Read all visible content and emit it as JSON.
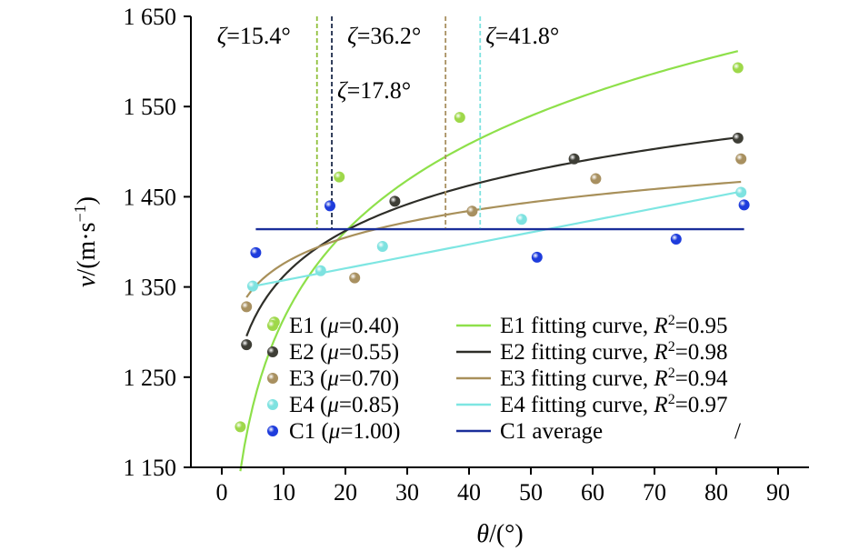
{
  "chart_data": {
    "type": "scatter",
    "xlabel_var": "θ",
    "xlabel_unit": "/(°)",
    "ylabel_var": "v",
    "ylabel_unit": "/(m·s",
    "ylabel_exp": "−1",
    "ylabel_close": ")",
    "xlim": [
      -5,
      95
    ],
    "ylim": [
      1150,
      1650
    ],
    "xticks": [
      0,
      10,
      20,
      30,
      40,
      50,
      60,
      70,
      80,
      90
    ],
    "xtick_labels": [
      "0",
      "10",
      "20",
      "30",
      "40",
      "50",
      "60",
      "70",
      "80",
      "90"
    ],
    "yticks": [
      1150,
      1250,
      1350,
      1450,
      1550,
      1650
    ],
    "ytick_labels": [
      "1 150",
      "1 250",
      "1 350",
      "1 450",
      "1 550",
      "1 650"
    ],
    "series": [
      {
        "name": "E1 (μ=0.40)",
        "legend_prefix": "E1 (",
        "legend_var": "μ",
        "legend_suffix": "=0.40)",
        "color": "#9ED84A",
        "line_color": "#8EE04A",
        "points": [
          [
            3,
            1195
          ],
          [
            8.5,
            1311
          ],
          [
            19,
            1472
          ],
          [
            38.5,
            1538
          ],
          [
            83.5,
            1593
          ]
        ],
        "fit": {
          "type": "log",
          "a": 992.0,
          "b": 140.0
        },
        "fit_label": "E1 fitting curve, ",
        "r2_value": "=0.95"
      },
      {
        "name": "E2 (μ=0.55)",
        "legend_prefix": "E2 (",
        "legend_var": "μ",
        "legend_suffix": "=0.55)",
        "color": "#3E3E36",
        "line_color": "#2E2E28",
        "points": [
          [
            4,
            1286
          ],
          [
            28,
            1445
          ],
          [
            57,
            1492
          ],
          [
            83.5,
            1515
          ]
        ],
        "fit": {
          "type": "log",
          "a": 1195.0,
          "b": 72.5
        },
        "fit_label": "E2 fitting curve, ",
        "r2_value": "=0.98"
      },
      {
        "name": "E3 (μ=0.70)",
        "legend_prefix": "E3 (",
        "legend_var": "μ",
        "legend_suffix": "=0.70)",
        "color": "#A89060",
        "line_color": "#A8905A",
        "points": [
          [
            4,
            1328
          ],
          [
            21.5,
            1360
          ],
          [
            40.5,
            1434
          ],
          [
            60.5,
            1470
          ],
          [
            84,
            1492
          ]
        ],
        "fit": {
          "type": "power",
          "a": 1284.0,
          "b": 0.03
        },
        "fit_label": "E3 fitting curve, ",
        "r2_value": "=0.94"
      },
      {
        "name": "E4 (μ=0.85)",
        "legend_prefix": "E4 (",
        "legend_var": "μ",
        "legend_suffix": "=0.85)",
        "color": "#7EE2E0",
        "line_color": "#7EE6E2",
        "points": [
          [
            5,
            1351
          ],
          [
            16,
            1368
          ],
          [
            26,
            1395
          ],
          [
            48.5,
            1425
          ],
          [
            84,
            1455
          ]
        ],
        "fit": {
          "type": "linear",
          "a": 1344.0,
          "b": 1.33
        },
        "fit_label": "E4 fitting curve, ",
        "r2_value": "=0.97"
      },
      {
        "name": "C1 (μ=1.00)",
        "legend_prefix": "C1 (",
        "legend_var": "μ",
        "legend_suffix": "=1.00)",
        "color": "#1E3CDC",
        "line_color": "#1A2E9A",
        "points": [
          [
            5.5,
            1388
          ],
          [
            17.5,
            1440
          ],
          [
            51,
            1383
          ],
          [
            73.5,
            1403
          ],
          [
            84.5,
            1441
          ]
        ],
        "average": 1414,
        "fit_label": "C1 average",
        "r2_value": "/"
      }
    ],
    "annotations": [
      {
        "var": "ζ",
        "text": "=15.4°",
        "x": 15.4,
        "color": "#8CC63F",
        "line_color": "#8FBF3A"
      },
      {
        "var": "ζ",
        "text": "=17.8°",
        "x": 17.8,
        "color": "#1C2A4A",
        "line_color": "#1C2A4A"
      },
      {
        "var": "ζ",
        "text": "=36.2°",
        "x": 36.2,
        "color": "#A89060",
        "line_color": "#A89060"
      },
      {
        "var": "ζ",
        "text": "=41.8°",
        "x": 41.8,
        "color": "#7EE2E0",
        "line_color": "#7EE2E0"
      }
    ],
    "r2_var": "R",
    "r2_sup": "2"
  }
}
